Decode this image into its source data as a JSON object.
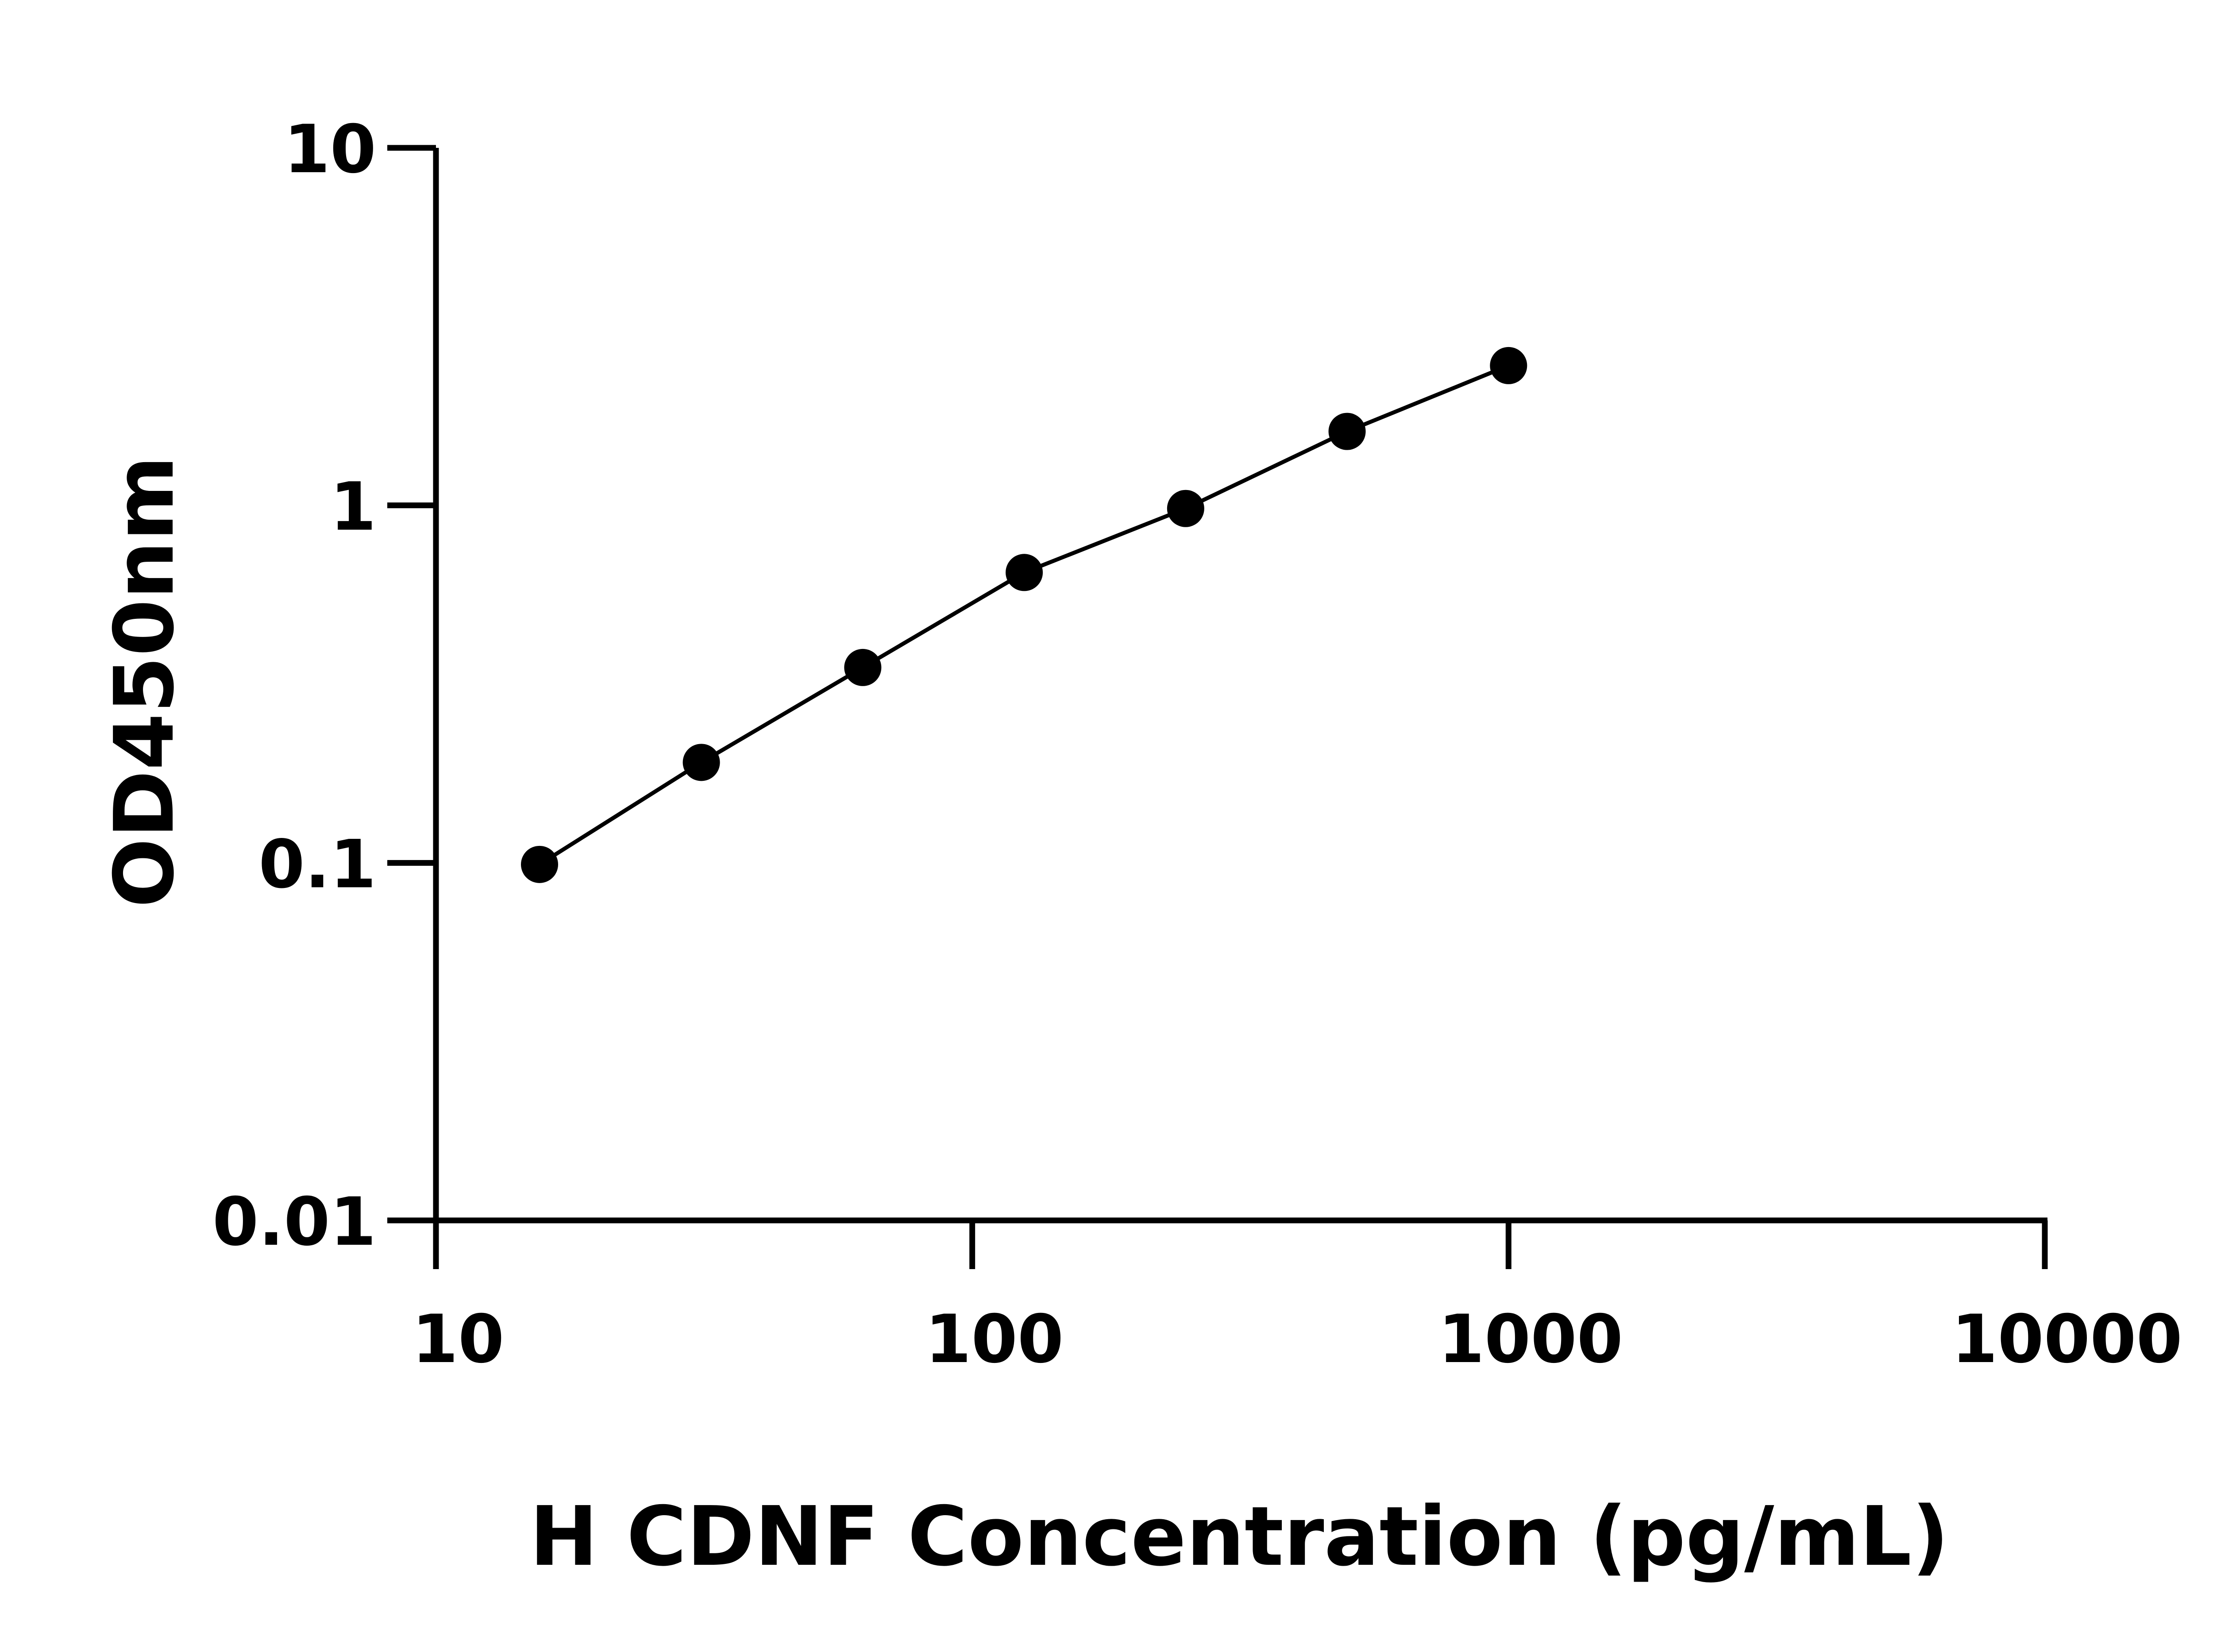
{
  "chart_data": {
    "type": "line",
    "title": "",
    "xlabel": "H CDNF Concentration (pg/mL)",
    "ylabel": "OD450nm",
    "x_scale": "log",
    "y_scale": "log",
    "xlim": [
      10,
      10000
    ],
    "ylim": [
      0.01,
      10
    ],
    "x_ticks": [
      "10",
      "100",
      "1000",
      "10000"
    ],
    "y_ticks": [
      "0.01",
      "0.1",
      "1",
      "10"
    ],
    "grid": false,
    "legend": "none",
    "series": [
      {
        "x": [
          15.6,
          31.25,
          62.5,
          125,
          250,
          500,
          1000
        ],
        "y": [
          0.099,
          0.191,
          0.352,
          0.649,
          0.98,
          1.61,
          2.46
        ],
        "color": "#000000",
        "marker": "circle"
      }
    ]
  }
}
